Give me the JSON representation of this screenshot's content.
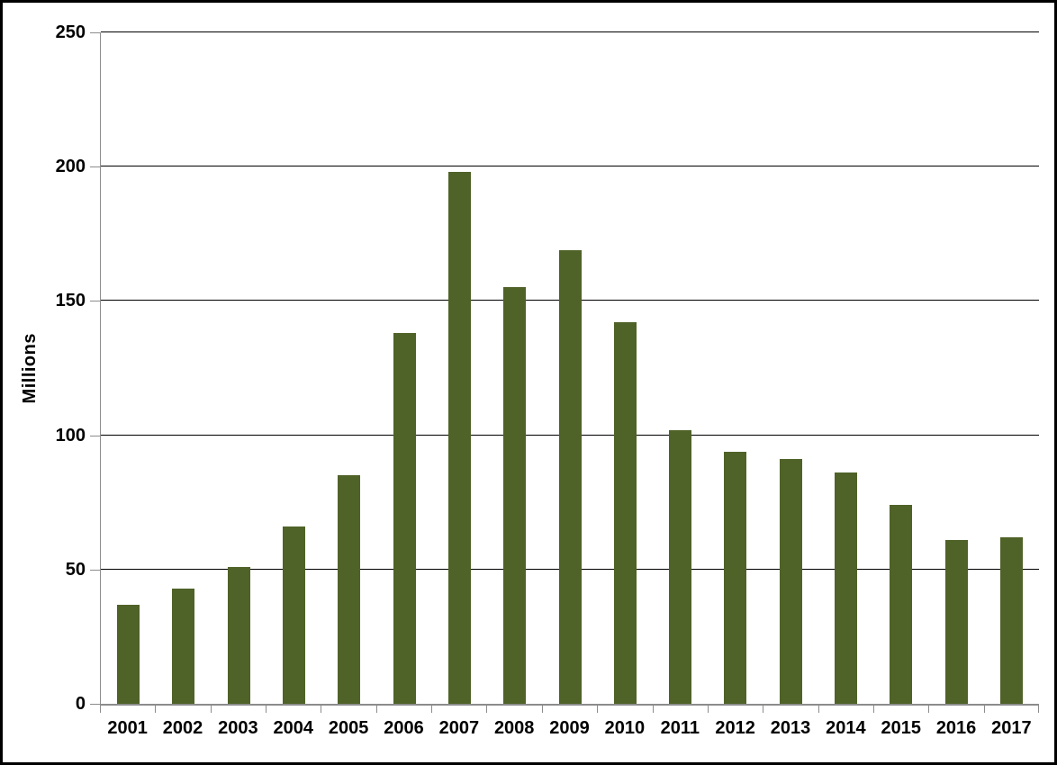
{
  "chart_data": {
    "type": "bar",
    "title": "",
    "xlabel": "",
    "ylabel": "Millions",
    "categories": [
      "2001",
      "2002",
      "2003",
      "2004",
      "2005",
      "2006",
      "2007",
      "2008",
      "2009",
      "2010",
      "2011",
      "2012",
      "2013",
      "2014",
      "2015",
      "2016",
      "2017"
    ],
    "values": [
      37,
      43,
      51,
      66,
      85,
      138,
      198,
      155,
      169,
      142,
      102,
      94,
      91,
      86,
      74,
      61,
      62
    ],
    "y_ticks": [
      0,
      50,
      100,
      150,
      200,
      250
    ],
    "ylim": [
      0,
      250
    ],
    "grid": "horizontal",
    "legend": "none",
    "bar_color": "#4F6228",
    "gridline_color": "#000000",
    "axis_color": "#8C8C8C",
    "text_color": "#000000",
    "background_color": "#FFFFFF",
    "border_color": "#000000"
  }
}
